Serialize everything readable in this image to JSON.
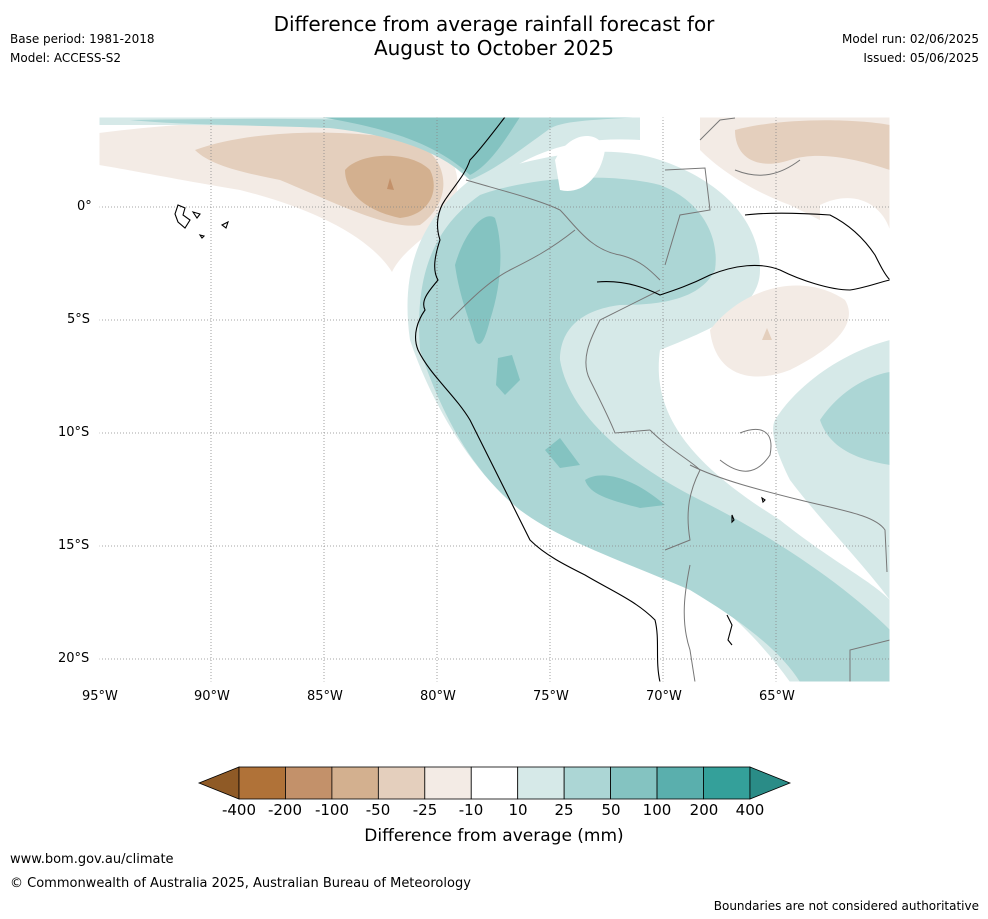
{
  "header": {
    "title_line1": "Difference from average rainfall forecast for",
    "title_line2": "August to October 2025",
    "base_period": "Base period: 1981-2018",
    "model": "Model: ACCESS-S2",
    "model_run": "Model run: 02/06/2025",
    "issued": "Issued: 05/06/2025"
  },
  "axes": {
    "y_ticks": [
      "0°",
      "5°S",
      "10°S",
      "15°S",
      "20°S"
    ],
    "x_ticks": [
      "95°W",
      "90°W",
      "85°W",
      "80°W",
      "75°W",
      "70°W",
      "65°W"
    ]
  },
  "colorbar": {
    "label": "Difference from average (mm)",
    "ticks": [
      "-400",
      "-200",
      "-100",
      "-50",
      "-25",
      "-10",
      "10",
      "25",
      "50",
      "100",
      "200",
      "400"
    ],
    "colors": [
      "#8f5a26",
      "#b07238",
      "#c3916a",
      "#d3b08f",
      "#e4cfbd",
      "#f3ebe5",
      "#ffffff",
      "#d6e9e8",
      "#acd6d5",
      "#84c3c1",
      "#5aafad",
      "#34a09a",
      "#2a8c87"
    ]
  },
  "footer": {
    "url": "www.bom.gov.au/climate",
    "copyright": "© Commonwealth of Australia 2025, Australian Bureau of Meteorology",
    "disclaimer": "Boundaries are not considered authoritative"
  }
}
